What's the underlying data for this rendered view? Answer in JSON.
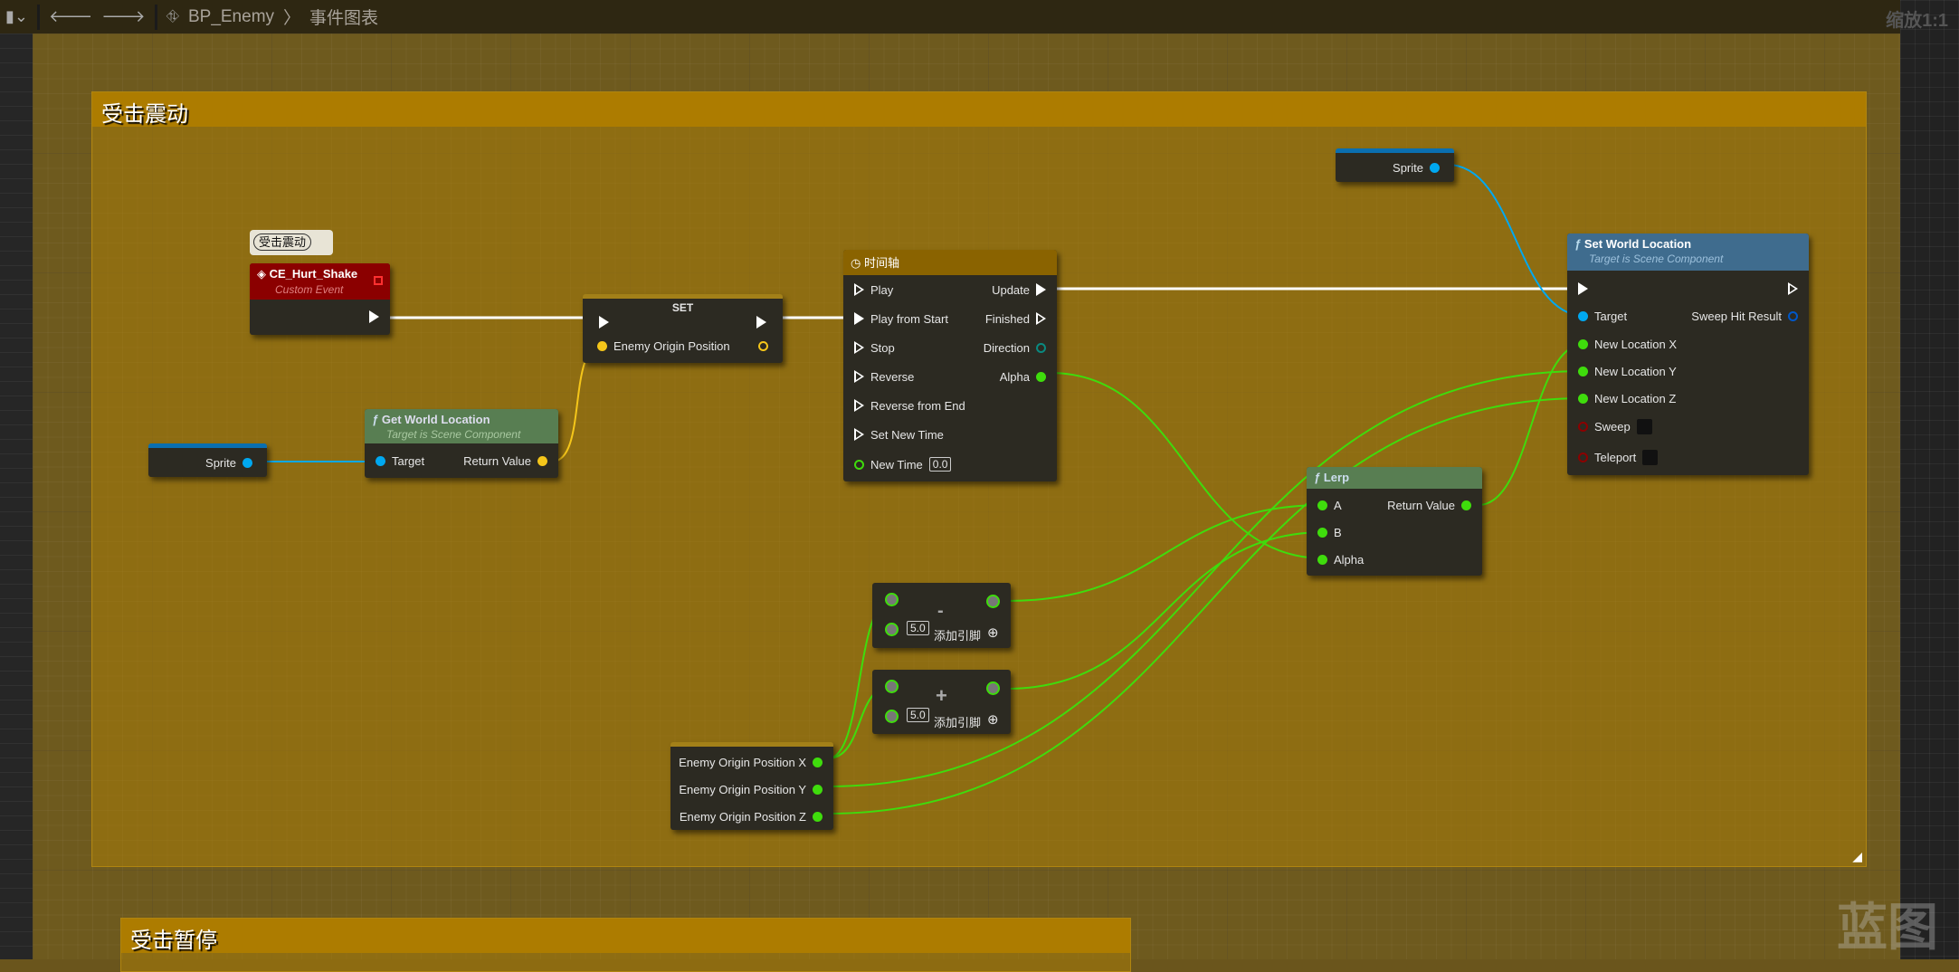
{
  "toolbar": {
    "breadcrumb_root": "BP_Enemy",
    "breadcrumb_sep": "〉",
    "breadcrumb_current": "事件图表",
    "zoom": "缩放1:1",
    "icons": [
      "bookmark-icon",
      "back-arrow-icon",
      "forward-arrow-icon",
      "graph-icon"
    ]
  },
  "comments": [
    {
      "title": "受击震动"
    },
    {
      "title": "受击暂停"
    }
  ],
  "watermark": "蓝图",
  "event_node": {
    "bubble": "受击震动",
    "title": "CE_Hurt_Shake",
    "subtitle": "Custom Event",
    "color": "#8b0000"
  },
  "set_node": {
    "title": "SET",
    "var": "Enemy Origin Position"
  },
  "sprite_var": {
    "label": "Sprite"
  },
  "get_world_location": {
    "title": "Get World Location",
    "subtitle": "Target is Scene Component",
    "in": "Target",
    "out": "Return Value"
  },
  "timeline": {
    "title": "时间轴",
    "inputs": [
      "Play",
      "Play from Start",
      "Stop",
      "Reverse",
      "Reverse from End",
      "Set New Time",
      "New Time"
    ],
    "new_time_value": "0.0",
    "outputs": [
      "Update",
      "Finished",
      "Direction",
      "Alpha"
    ]
  },
  "set_world_location": {
    "title": "Set World Location",
    "subtitle": "Target is Scene Component",
    "inputs": [
      "Target",
      "New Location X",
      "New Location Y",
      "New Location Z",
      "Sweep",
      "Teleport"
    ],
    "output": "Sweep Hit Result"
  },
  "lerp": {
    "title": "Lerp",
    "inputs": [
      "A",
      "B",
      "Alpha"
    ],
    "output": "Return Value"
  },
  "minus_node": {
    "op": "-",
    "value": "5.0",
    "add_pin": "添加引脚"
  },
  "plus_node": {
    "op": "+",
    "value": "5.0",
    "add_pin": "添加引脚"
  },
  "origin_vars": {
    "outputs": [
      "Enemy Origin Position X",
      "Enemy Origin Position Y",
      "Enemy Origin Position Z"
    ]
  },
  "colors": {
    "exec": "#ffffff",
    "object": "#00a8f0",
    "vector": "#f5c61a",
    "float": "#3fdc0c",
    "bool": "#8b0000",
    "struct": "#0057c8"
  }
}
